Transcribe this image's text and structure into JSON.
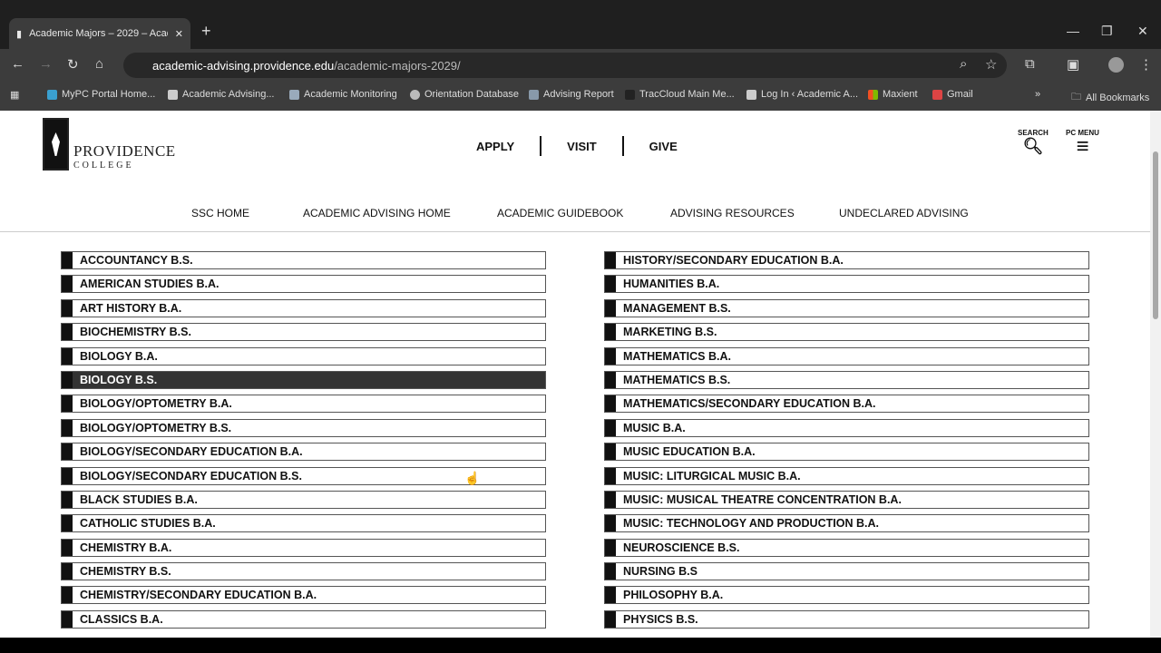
{
  "browser": {
    "tab_title": "Academic Majors – 2029 – Acad",
    "url_host": "academic-advising.providence.edu",
    "url_path": "/academic-majors-2029/",
    "bookmarks": [
      "MyPC Portal Home...",
      "Academic Advising...",
      "Academic Monitoring",
      "Orientation Database",
      "Advising Report",
      "TracCloud Main Me...",
      "Log In ‹ Academic A...",
      "Maxient",
      "Gmail"
    ],
    "all_bookmarks": "All Bookmarks"
  },
  "header": {
    "logo_name": "PROVIDENCE",
    "logo_sub": "COLLEGE",
    "nav": [
      "APPLY",
      "VISIT",
      "GIVE"
    ],
    "search": "SEARCH",
    "menu": "PC MENU"
  },
  "subnav": [
    "SSC HOME",
    "ACADEMIC ADVISING HOME",
    "ACADEMIC GUIDEBOOK",
    "ADVISING RESOURCES",
    "UNDECLARED ADVISING"
  ],
  "majors_left": [
    "ACCOUNTANCY B.S.",
    "AMERICAN STUDIES B.A.",
    "ART HISTORY B.A.",
    "BIOCHEMISTRY B.S.",
    "BIOLOGY B.A.",
    "BIOLOGY B.S.",
    "BIOLOGY/OPTOMETRY B.A.",
    "BIOLOGY/OPTOMETRY B.S.",
    "BIOLOGY/SECONDARY EDUCATION B.A.",
    "BIOLOGY/SECONDARY EDUCATION B.S.",
    "BLACK STUDIES B.A.",
    "CATHOLIC STUDIES B.A.",
    "CHEMISTRY B.A.",
    "CHEMISTRY B.S.",
    "CHEMISTRY/SECONDARY EDUCATION B.A.",
    "CLASSICS B.A."
  ],
  "majors_right": [
    "HISTORY/SECONDARY EDUCATION B.A.",
    "HUMANITIES B.A.",
    "MANAGEMENT B.S.",
    "MARKETING B.S.",
    "MATHEMATICS B.A.",
    "MATHEMATICS B.S.",
    "MATHEMATICS/SECONDARY EDUCATION B.A.",
    "MUSIC B.A.",
    "MUSIC EDUCATION B.A.",
    "MUSIC: LITURGICAL MUSIC B.A.",
    "MUSIC: MUSICAL THEATRE CONCENTRATION B.A.",
    "MUSIC: TECHNOLOGY AND PRODUCTION B.A.",
    "NEUROSCIENCE B.S.",
    "NURSING B.S",
    "PHILOSOPHY B.A.",
    "PHYSICS B.S."
  ],
  "active_major": "BIOLOGY B.S."
}
